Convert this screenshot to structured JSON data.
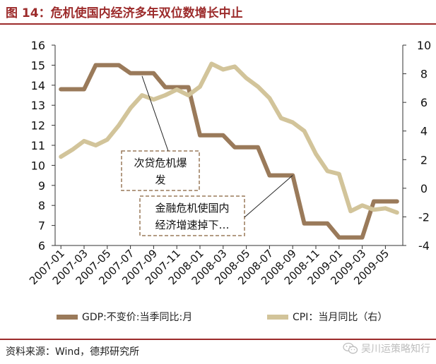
{
  "header": {
    "title": "图 14：危机使国内经济多年双位数增长中止"
  },
  "chart_data": {
    "type": "line",
    "x": [
      "2007-01",
      "2007-02",
      "2007-03",
      "2007-04",
      "2007-05",
      "2007-06",
      "2007-07",
      "2007-08",
      "2007-09",
      "2007-10",
      "2007-11",
      "2007-12",
      "2008-01",
      "2008-02",
      "2008-03",
      "2008-04",
      "2008-05",
      "2008-06",
      "2008-07",
      "2008-08",
      "2008-09",
      "2008-10",
      "2008-11",
      "2008-12",
      "2009-01",
      "2009-02",
      "2009-03",
      "2009-04",
      "2009-05",
      "2009-06"
    ],
    "x_tick_labels": [
      "2007-01",
      "2007-03",
      "2007-05",
      "2007-07",
      "2007-09",
      "2007-11",
      "2008-01",
      "2008-03",
      "2008-05",
      "2008-07",
      "2008-09",
      "2008-11",
      "2009-01",
      "2009-03",
      "2009-05"
    ],
    "series": [
      {
        "name": "GDP:不变价:当季同比:月",
        "axis": "left",
        "color": "#9a7a5a",
        "values": [
          13.8,
          13.8,
          13.8,
          15.0,
          15.0,
          15.0,
          14.6,
          14.6,
          14.6,
          13.9,
          13.9,
          13.9,
          11.5,
          11.5,
          11.5,
          10.9,
          10.9,
          10.9,
          9.5,
          9.5,
          9.5,
          7.1,
          7.1,
          7.1,
          6.4,
          6.4,
          6.4,
          8.2,
          8.2,
          8.2
        ]
      },
      {
        "name": "CPI：当月同比（右）",
        "axis": "right",
        "color": "#d2c49a",
        "values": [
          2.2,
          2.7,
          3.3,
          3.0,
          3.4,
          4.4,
          5.6,
          6.5,
          6.2,
          6.5,
          6.9,
          6.5,
          7.1,
          8.7,
          8.3,
          8.5,
          7.7,
          7.1,
          6.3,
          4.9,
          4.6,
          4.0,
          2.4,
          1.2,
          1.0,
          -1.6,
          -1.2,
          -1.5,
          -1.4,
          -1.7
        ]
      }
    ],
    "y_left": {
      "min": 6,
      "max": 16,
      "ticks": [
        6,
        7,
        8,
        9,
        10,
        11,
        12,
        13,
        14,
        15,
        16
      ]
    },
    "y_right": {
      "min": -4,
      "max": 10,
      "ticks": [
        -4,
        -2,
        0,
        2,
        4,
        6,
        8,
        10
      ]
    },
    "annotations": [
      {
        "lines": [
          "次贷危机爆",
          "发"
        ],
        "points_to": "2007-08"
      },
      {
        "lines": [
          "金融危机使国内",
          "经济增速掉下…"
        ],
        "points_to": "2008-09"
      }
    ],
    "legend_position": "bottom"
  },
  "footer": {
    "source": "资料来源：Wind，德邦研究所",
    "watermark": "吴川运策略知行"
  }
}
